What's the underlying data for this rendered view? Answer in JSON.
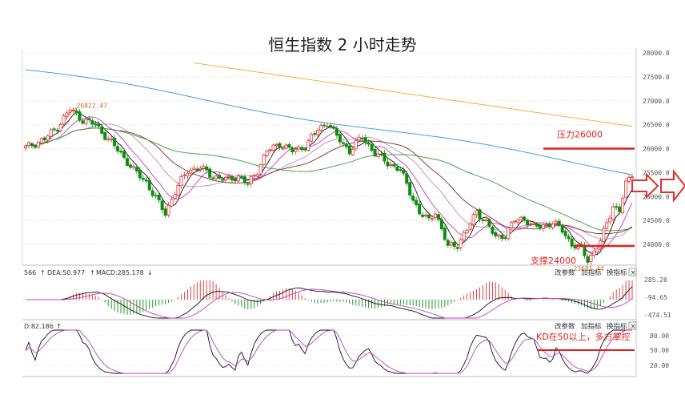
{
  "chart_data": {
    "type": "candlestick",
    "title": "恒生指数 2 小时走势",
    "y_ticks": [
      "28000.0",
      "27500.0",
      "27000.0",
      "26500.0",
      "26000.0",
      "25500.0",
      "25000.0",
      "24500.0",
      "24000.0"
    ],
    "ylim": [
      23700,
      28150
    ],
    "annotations": {
      "high_label": "26822.47",
      "low_label": "23681.44",
      "resistance_label": "压力26000",
      "resistance_value": 26000,
      "support_label": "支撑24000",
      "support_value": 24000
    },
    "macd_panel": {
      "legend_prefix": "566",
      "dea_label": "DEA:50.977",
      "macd_label": "MACD:285.178",
      "ticks": [
        "285.20",
        "-94.65",
        "-474.51"
      ]
    },
    "kd_panel": {
      "legend_label": "D:82.186",
      "ticks": [
        "80.00",
        "50.00",
        "20.00"
      ],
      "note": "KD在50以上，多方掌控"
    },
    "panel_buttons": [
      "改参数",
      "加指标",
      "换指标",
      "×"
    ],
    "colors": {
      "up": "#e03030",
      "down": "#108a10",
      "ma_orange": "#f0a830",
      "ma_blue": "#3a8fd8",
      "ma_green": "#3a9a3a",
      "ma_brown": "#8b2a2a",
      "ma_purple": "#c040c0",
      "line_black": "#111111",
      "annotation_red": "#e02020"
    },
    "icons": [
      "right-arrow-icon",
      "up-arrow-icon",
      "down-arrow-icon",
      "close-icon"
    ]
  }
}
